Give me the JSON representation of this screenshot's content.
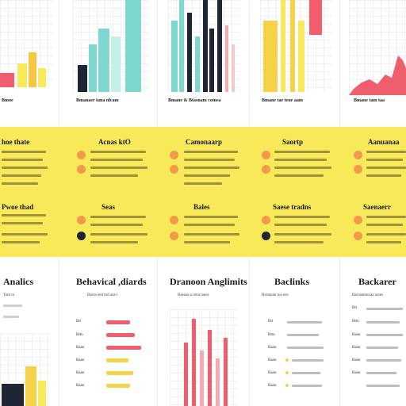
{
  "top_row": {
    "captions": [
      "Bmoe",
      "Bmanaer tana nlcam",
      "Bmane & Btasnam comea",
      "Bmane tae tene aam",
      "Bmane tam taa"
    ]
  },
  "band": {
    "row1_titles": [
      "hoe thate",
      "Acnas ktO",
      "Camonaarp",
      "Saortp",
      "Aanuanaa"
    ],
    "row2_titles": [
      "Pwoe thad",
      "Seas",
      "Bales",
      "Saese tradns",
      "Saenaerr"
    ]
  },
  "bottom": {
    "titles": [
      "Analics",
      "Behavical ,diards",
      "Dranoon Anglimits",
      "Baclinks",
      "Backarer"
    ],
    "subcaptions": [
      "Tom to",
      "Barrocred tod ane t",
      "Baenae a oma tanes",
      "Brmanan toa nes",
      "Barnaamnoaa tanes"
    ],
    "row_labels": [
      "Btt",
      "Bttn",
      "Baan",
      "Baan",
      "Baan",
      "Baan"
    ]
  },
  "colors": {
    "yellow": "#f8e95a",
    "coral": "#ef5e6e",
    "teal": "#7ed8cf",
    "pink": "#f5a9b0",
    "navy": "#1f2533",
    "orange": "#f39a4a"
  },
  "icons": [
    "flame-icon",
    "bulb-icon",
    "person-icon",
    "spark-icon"
  ]
}
